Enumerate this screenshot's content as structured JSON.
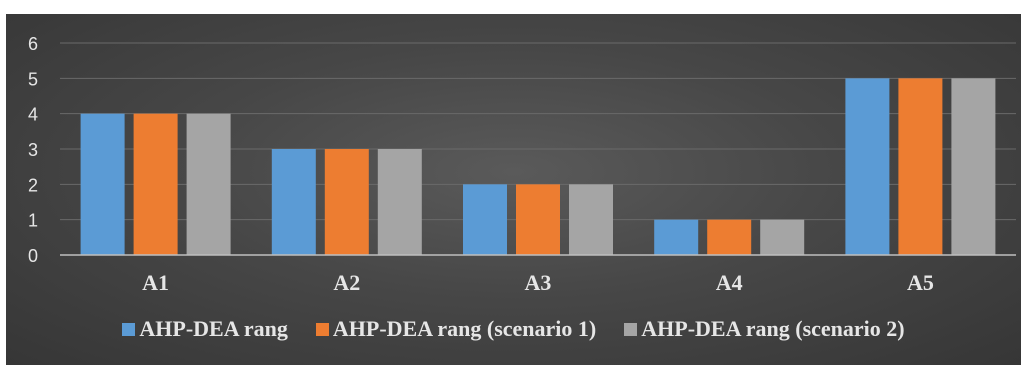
{
  "chart_data": {
    "type": "bar",
    "categories": [
      "A1",
      "A2",
      "A3",
      "A4",
      "A5"
    ],
    "series": [
      {
        "name": "AHP-DEA rang",
        "values": [
          4,
          3,
          2,
          1,
          5
        ],
        "color": "#5b9bd5"
      },
      {
        "name": "AHP-DEA rang (scenario 1)",
        "values": [
          4,
          3,
          2,
          1,
          5
        ],
        "color": "#ed7d31"
      },
      {
        "name": "AHP-DEA rang (scenario 2)",
        "values": [
          4,
          3,
          2,
          1,
          5
        ],
        "color": "#a5a5a5"
      }
    ],
    "y_ticks": [
      "0",
      "1",
      "2",
      "3",
      "4",
      "5",
      "6"
    ],
    "ylim": [
      0,
      6
    ],
    "grid": true,
    "legend_position": "bottom",
    "background": "#474747"
  }
}
